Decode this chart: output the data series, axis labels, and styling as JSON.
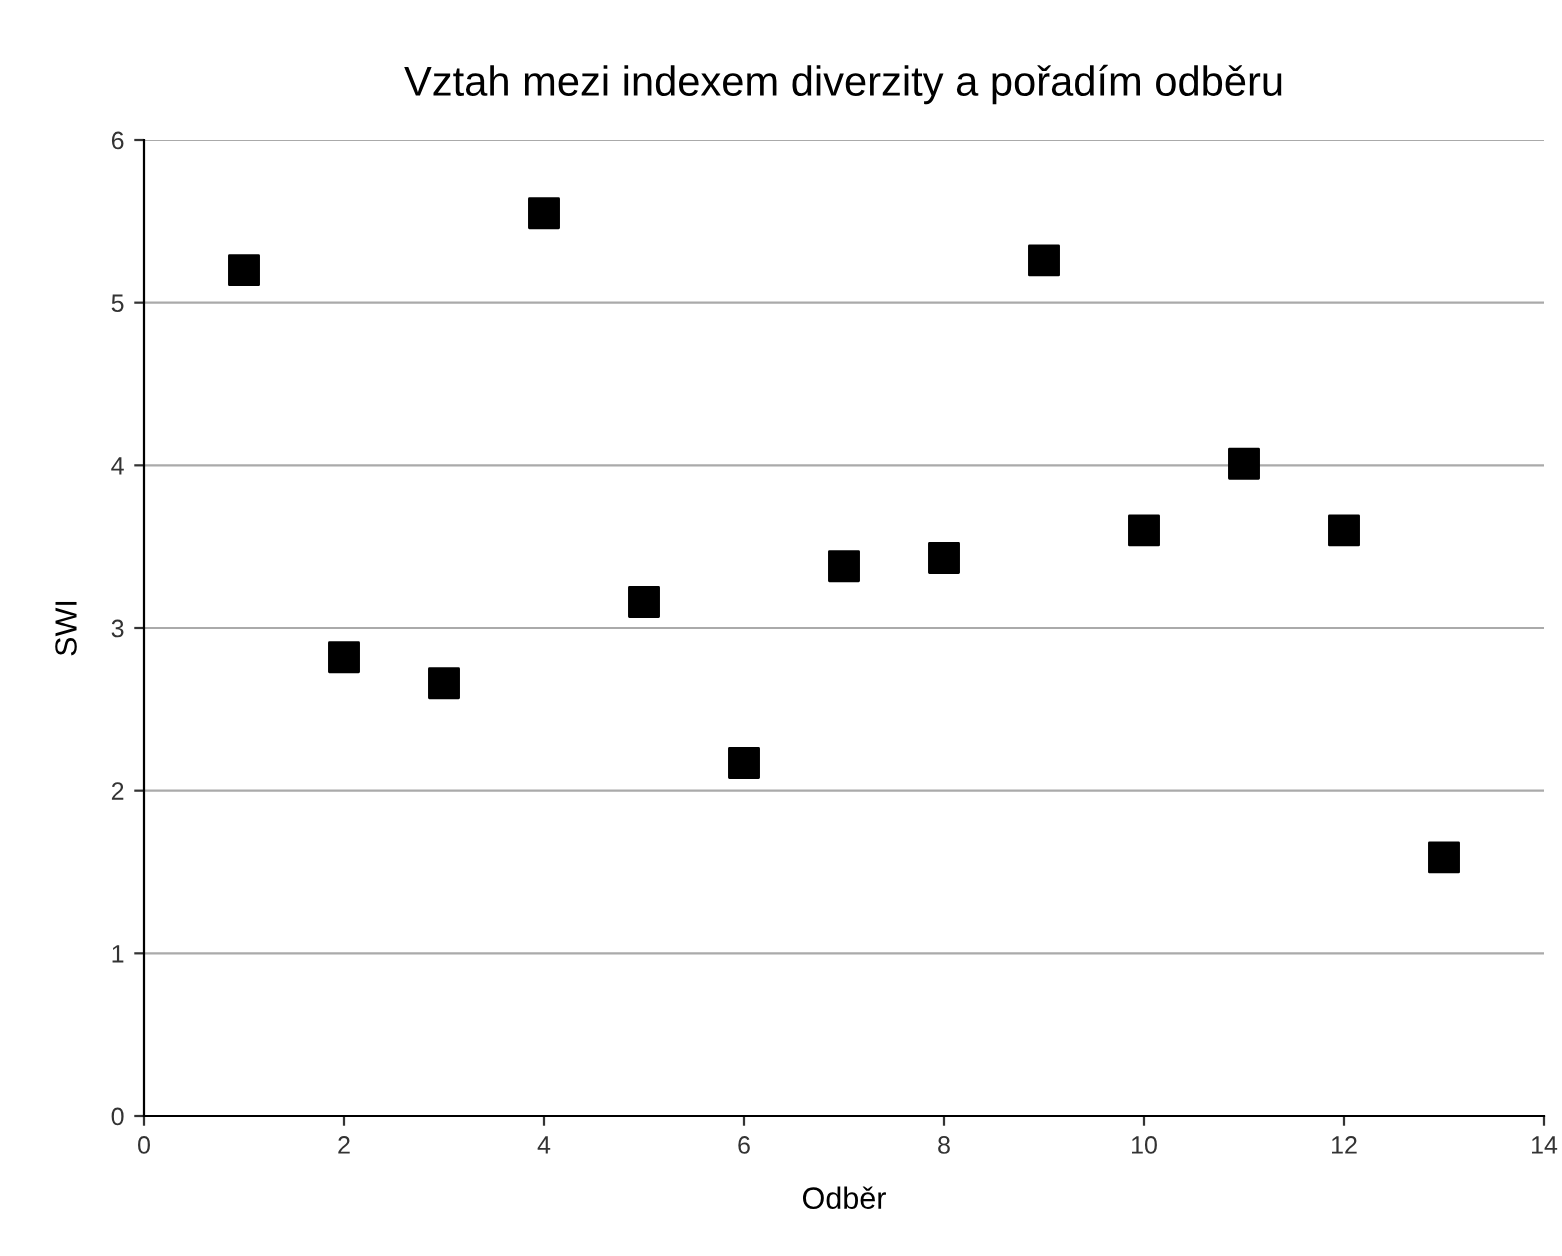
{
  "chart_data": {
    "type": "scatter",
    "title": "Vztah mezi indexem diverzity a pořadím odběru",
    "xlabel": "Odběr",
    "ylabel": "SWI",
    "x": [
      1,
      2,
      3,
      4,
      5,
      6,
      7,
      8,
      9,
      10,
      11,
      12,
      13
    ],
    "series": [
      {
        "color": "#000000",
        "values": [
          5.2,
          2.82,
          2.66,
          5.55,
          3.16,
          2.17,
          3.38,
          3.43,
          5.26,
          3.6,
          4.01,
          3.6,
          1.59
        ]
      }
    ],
    "xlim": [
      0,
      14
    ],
    "xticks": [
      0,
      2,
      4,
      6,
      8,
      10,
      12,
      14
    ],
    "ylim": [
      0,
      6
    ],
    "yticks": [
      0,
      1,
      2,
      3,
      4,
      5,
      6
    ],
    "grid": "y",
    "marker": "square"
  }
}
